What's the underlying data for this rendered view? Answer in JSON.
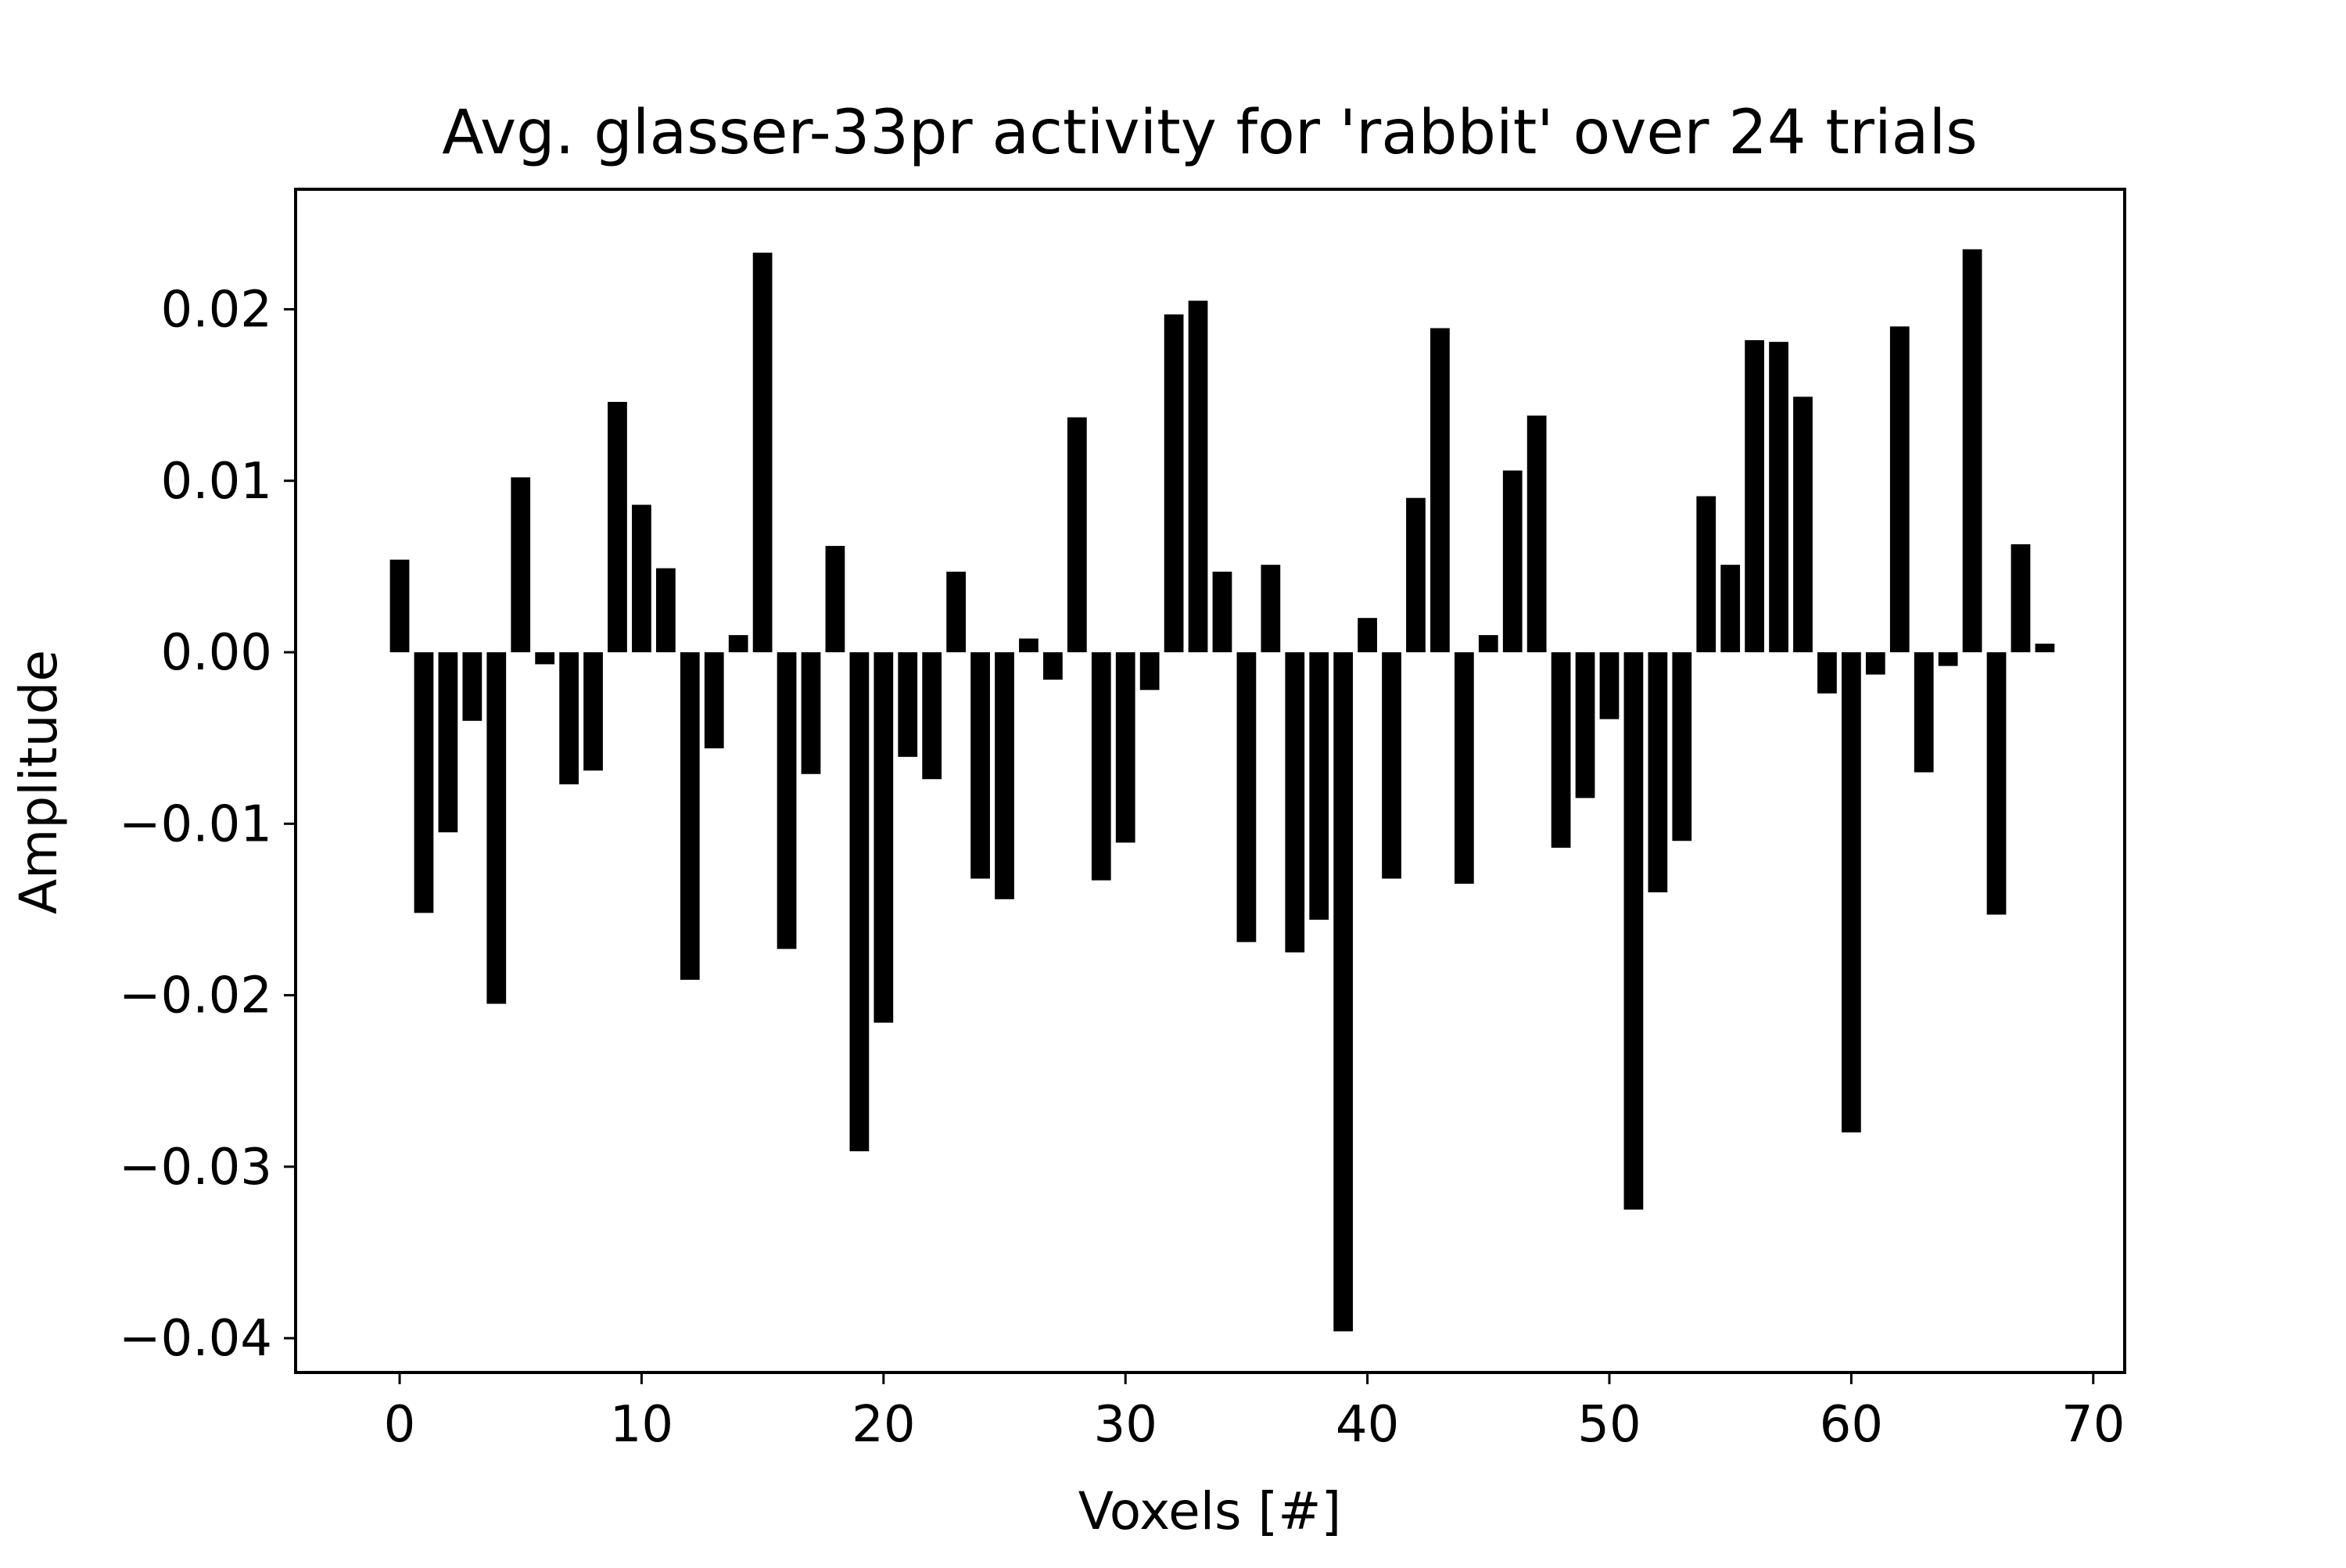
{
  "chart_data": {
    "type": "bar",
    "title": "Avg. glasser-33pr activity for 'rabbit' over 24 trials",
    "xlabel": "Voxels [#]",
    "ylabel": "Amplitude",
    "xlim": [
      -4.3,
      71.3
    ],
    "ylim": [
      -0.042,
      0.027
    ],
    "x_ticks": [
      0,
      10,
      20,
      30,
      40,
      50,
      60,
      70
    ],
    "x_tick_labels": [
      "0",
      "10",
      "20",
      "30",
      "40",
      "50",
      "60",
      "70"
    ],
    "y_ticks": [
      0.02,
      0.01,
      0.0,
      -0.01,
      -0.02,
      -0.03,
      -0.04
    ],
    "y_tick_labels": [
      "0.02",
      "0.01",
      "0.00",
      "−0.01",
      "−0.02",
      "−0.03",
      "−0.04"
    ],
    "grid": false,
    "bar_color": "#000000",
    "x": [
      0,
      1,
      2,
      3,
      4,
      5,
      6,
      7,
      8,
      9,
      10,
      11,
      12,
      13,
      14,
      15,
      16,
      17,
      18,
      19,
      20,
      21,
      22,
      23,
      24,
      25,
      26,
      27,
      28,
      29,
      30,
      31,
      32,
      33,
      34,
      35,
      36,
      37,
      38,
      39,
      40,
      41,
      42,
      43,
      44,
      45,
      46,
      47,
      48,
      49,
      50,
      51,
      52,
      53,
      54,
      55,
      56,
      57,
      58,
      59,
      60,
      61,
      62,
      63,
      64,
      65,
      66,
      67,
      68
    ],
    "values": [
      0.0054,
      -0.0152,
      -0.0105,
      -0.004,
      -0.0205,
      0.0102,
      -0.0007,
      -0.0077,
      -0.0069,
      0.0146,
      0.0086,
      0.0049,
      -0.0191,
      -0.0056,
      0.001,
      0.0233,
      -0.0173,
      -0.0071,
      0.0062,
      -0.0291,
      -0.0216,
      -0.0061,
      -0.0074,
      0.0047,
      -0.0132,
      -0.0144,
      0.0008,
      -0.0016,
      0.0137,
      -0.0133,
      -0.0111,
      -0.0022,
      0.0197,
      0.0205,
      0.0047,
      -0.0169,
      0.0051,
      -0.0175,
      -0.0156,
      -0.0396,
      0.002,
      -0.0132,
      0.009,
      0.0189,
      -0.0135,
      0.001,
      0.0106,
      0.0138,
      -0.0114,
      -0.0085,
      -0.0039,
      -0.0325,
      -0.014,
      -0.011,
      0.0091,
      0.0051,
      0.0182,
      0.0181,
      0.0149,
      -0.0024,
      -0.028,
      -0.0013,
      0.019,
      -0.007,
      -0.0008,
      0.0235,
      -0.0153,
      0.0063,
      0.0005
    ]
  }
}
